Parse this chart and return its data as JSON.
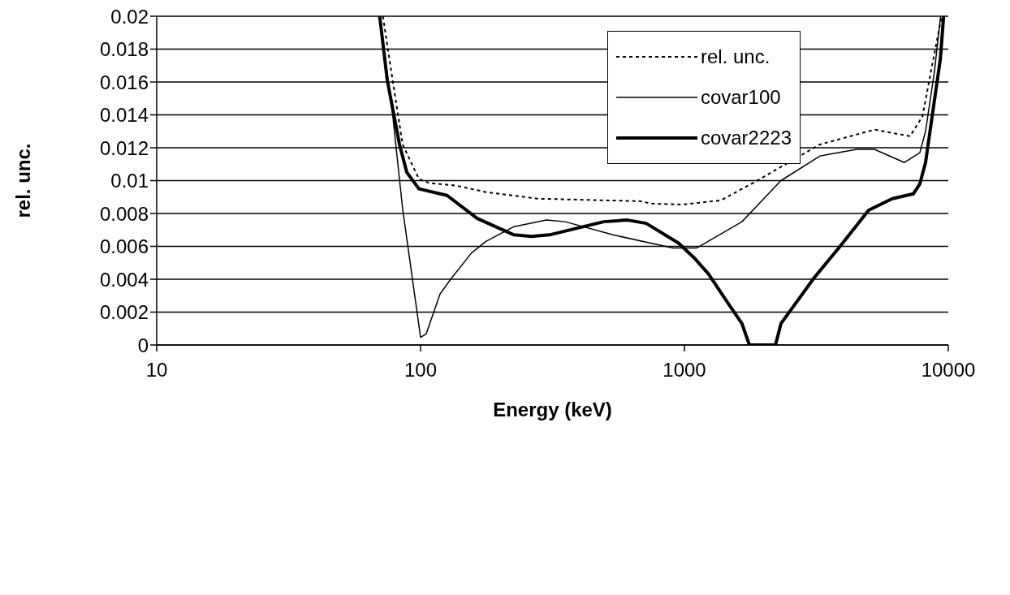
{
  "chart_data": {
    "type": "line",
    "xlabel": "Energy (keV)",
    "ylabel": "rel. unc.",
    "log": "x",
    "xlim": [
      10,
      10000
    ],
    "xticks": [
      10,
      100,
      1000,
      10000
    ],
    "ylim": [
      0,
      0.02
    ],
    "yticks": [
      0,
      0.002,
      0.004,
      0.006,
      0.008,
      0.01,
      0.012,
      0.014,
      0.016,
      0.018,
      0.02
    ],
    "grid": "y",
    "legend": "top right",
    "marker": "none",
    "series": [
      {
        "name": "rel. unc.",
        "color": "#000000",
        "line_style": "dotted",
        "x": [
          72,
          77,
          85.5,
          98.6,
          108,
          136,
          177,
          277,
          677,
          753,
          980,
          1374,
          1840,
          3265,
          5250,
          7160,
          7980,
          8610,
          9330,
          9450
        ],
        "values": [
          0.02,
          0.0169,
          0.0122,
          0.0101,
          0.00985,
          0.0097,
          0.0093,
          0.0089,
          0.00875,
          0.0086,
          0.00854,
          0.0088,
          0.0099,
          0.0122,
          0.0131,
          0.0127,
          0.0139,
          0.0167,
          0.0196,
          0.02
        ]
      },
      {
        "name": "covar100",
        "color": "#000000",
        "line_style": "solid",
        "x": [
          70,
          78.5,
          85.5,
          100,
          105,
          118.5,
          130,
          156,
          177,
          226,
          300,
          353,
          536,
          905,
          1112,
          1652,
          2322,
          3265,
          4490,
          5250,
          6820,
          7800,
          8200,
          8870,
          9350
        ],
        "values": [
          0.02,
          0.0139,
          0.0083,
          0.00046,
          0.00067,
          0.0031,
          0.004,
          0.0056,
          0.0063,
          0.0072,
          0.0076,
          0.0075,
          0.0067,
          0.0059,
          0.0059,
          0.0075,
          0.01,
          0.0115,
          0.0119,
          0.0119,
          0.0111,
          0.0117,
          0.013,
          0.0167,
          0.02
        ]
      },
      {
        "name": "covar2223",
        "color": "#000000",
        "line_style": "solid",
        "x": [
          70,
          74.8,
          83.2,
          88.7,
          98.6,
          126,
          164,
          226,
          263,
          308,
          495,
          609,
          716,
          950,
          1089,
          1236,
          1455,
          1652,
          1762,
          2213,
          2322,
          3105,
          3845,
          4990,
          6135,
          7380,
          7800,
          8200,
          9330,
          9600
        ],
        "values": [
          0.02,
          0.0161,
          0.0122,
          0.0105,
          0.0095,
          0.0091,
          0.0077,
          0.0067,
          0.0066,
          0.0067,
          0.0075,
          0.0076,
          0.0074,
          0.0062,
          0.0053,
          0.0043,
          0.0026,
          0.0013,
          0,
          0,
          0.0013,
          0.0041,
          0.0059,
          0.0082,
          0.0089,
          0.0092,
          0.0098,
          0.0111,
          0.0174,
          0.02
        ]
      }
    ]
  }
}
